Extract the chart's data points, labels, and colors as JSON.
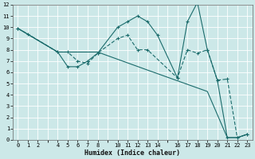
{
  "xlabel": "Humidex (Indice chaleur)",
  "bg_color": "#cce8e8",
  "grid_color": "#ffffff",
  "line_color": "#1a6b6b",
  "xlim": [
    -0.5,
    23.5
  ],
  "ylim": [
    0,
    12
  ],
  "xtick_vals": [
    0,
    1,
    2,
    4,
    5,
    6,
    7,
    8,
    10,
    11,
    12,
    13,
    14,
    16,
    17,
    18,
    19,
    20,
    21,
    22,
    23
  ],
  "xtick_labels": [
    "0",
    "1",
    "2",
    "4",
    "5",
    "6",
    "7",
    "8",
    "10",
    "11",
    "12",
    "13",
    "14",
    "16",
    "17",
    "18",
    "19",
    "20",
    "21",
    "22",
    "23"
  ],
  "yticks": [
    0,
    1,
    2,
    3,
    4,
    5,
    6,
    7,
    8,
    9,
    10,
    11,
    12
  ],
  "line1_x": [
    0,
    1,
    4,
    5,
    6,
    7,
    8,
    10,
    11,
    12,
    13,
    16,
    17,
    18,
    19,
    20,
    21,
    22,
    23
  ],
  "line1_y": [
    9.9,
    9.4,
    7.8,
    7.8,
    7.0,
    6.8,
    7.7,
    9.0,
    9.3,
    8.0,
    8.0,
    5.5,
    8.0,
    7.7,
    8.0,
    5.3,
    5.4,
    0.2,
    0.5
  ],
  "line2_x": [
    0,
    4,
    5,
    6,
    7,
    8,
    10,
    11,
    12,
    13,
    14,
    16,
    17,
    18,
    19,
    20,
    21,
    22,
    23
  ],
  "line2_y": [
    9.9,
    7.8,
    6.5,
    6.5,
    7.0,
    7.7,
    10.0,
    10.5,
    11.0,
    10.5,
    9.3,
    5.5,
    10.5,
    12.2,
    8.0,
    5.3,
    0.2,
    0.2,
    0.5
  ],
  "line3_x": [
    0,
    4,
    8,
    13,
    19,
    21,
    22,
    23
  ],
  "line3_y": [
    9.9,
    7.8,
    7.8,
    6.2,
    4.3,
    0.2,
    0.2,
    0.5
  ],
  "tick_fontsize": 5,
  "xlabel_fontsize": 6
}
